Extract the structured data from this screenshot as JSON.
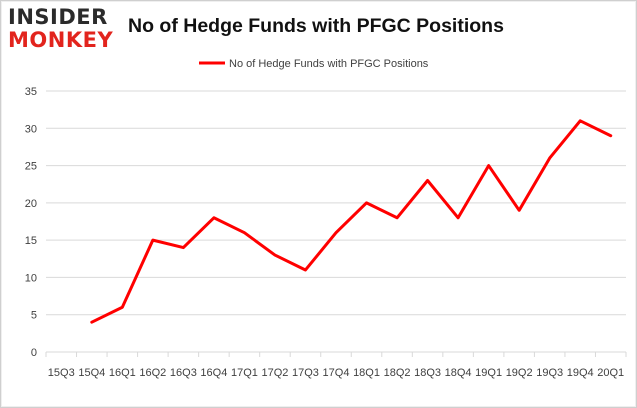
{
  "logo": {
    "line1": "INSIDER",
    "line2": "MONKEY"
  },
  "colors": {
    "line": "#ff0000",
    "grid": "#d9d9d9",
    "axis": "#d9d9d9",
    "text": "#404040",
    "brand_red": "#e2241d"
  },
  "chart_data": {
    "type": "line",
    "title": "No of Hedge Funds with PFGC Positions",
    "categories": [
      "15Q3",
      "15Q4",
      "16Q1",
      "16Q2",
      "16Q3",
      "16Q4",
      "17Q1",
      "17Q2",
      "17Q3",
      "17Q4",
      "18Q1",
      "18Q2",
      "18Q3",
      "18Q4",
      "19Q1",
      "19Q2",
      "19Q3",
      "19Q4",
      "20Q1"
    ],
    "series": [
      {
        "name": "No of Hedge Funds with PFGC Positions",
        "values": [
          null,
          4,
          6,
          15,
          14,
          18,
          16,
          13,
          11,
          16,
          20,
          18,
          23,
          18,
          25,
          19,
          26,
          31,
          29
        ]
      }
    ],
    "ylim": [
      0,
      35
    ],
    "yticks": [
      0,
      5,
      10,
      15,
      20,
      25,
      30,
      35
    ],
    "grid": true,
    "legend": "top-center",
    "xlabel": "",
    "ylabel": ""
  }
}
